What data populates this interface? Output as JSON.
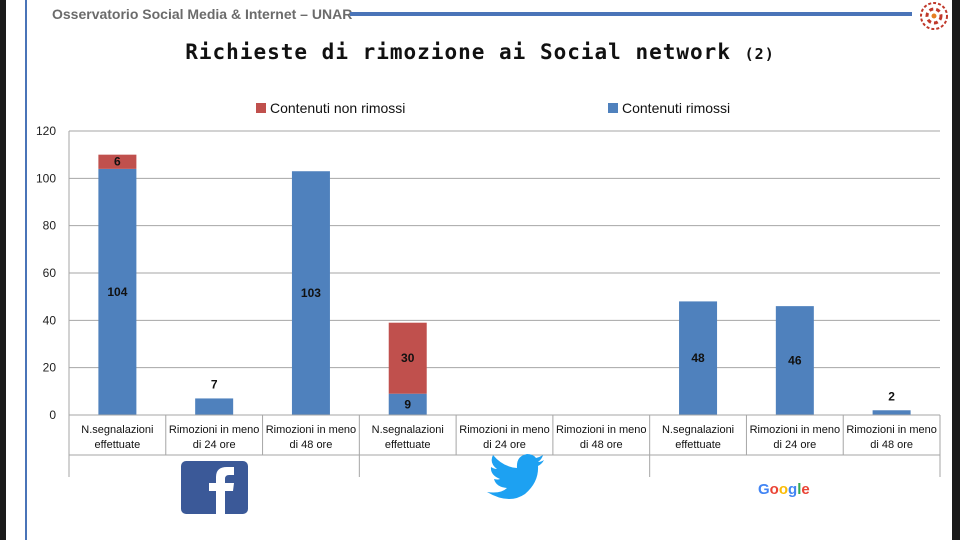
{
  "header": {
    "org": "Osservatorio Social Media & Internet – UNAR"
  },
  "title": {
    "main": "Richieste di rimozione ai Social network",
    "suffix": "(2)"
  },
  "colors": {
    "removed": "#4f81bd",
    "not_removed": "#c0504d",
    "accent": "#4a74b8"
  },
  "logos": [
    "facebook-logo",
    "twitter-logo",
    "google-logo"
  ],
  "google_wordmark": "Google",
  "chart_data": {
    "type": "bar",
    "stacked": true,
    "ylim": [
      0,
      120
    ],
    "yticks": [
      0,
      20,
      40,
      60,
      80,
      100,
      120
    ],
    "grid": true,
    "legend": "top",
    "groups": [
      "Facebook",
      "Twitter",
      "Google"
    ],
    "categories": [
      "N.segnalazioni effettuate",
      "Rimozioni in meno di 24 ore",
      "Rimozioni in meno di 48 ore",
      "N.segnalazioni effettuate",
      "Rimozioni in meno di 24 ore",
      "Rimozioni in meno di 48 ore",
      "N.segnalazioni effettuate",
      "Rimozioni in meno di 24 ore",
      "Rimozioni in meno di 48 ore"
    ],
    "series": [
      {
        "name": "Contenuti rimossi",
        "color": "#4f81bd",
        "values": [
          104,
          7,
          103,
          9,
          0,
          0,
          48,
          46,
          2
        ]
      },
      {
        "name": "Contenuti non rimossi",
        "color": "#c0504d",
        "values": [
          6,
          0,
          0,
          30,
          0,
          0,
          0,
          0,
          0
        ]
      }
    ],
    "legend_entries": [
      "Contenuti non rimossi",
      "Contenuti rimossi"
    ],
    "labels": [
      {
        "index": 0,
        "series": 0,
        "text": "104"
      },
      {
        "index": 0,
        "series": 1,
        "text": "6"
      },
      {
        "index": 1,
        "series": 0,
        "text": "7"
      },
      {
        "index": 2,
        "series": 0,
        "text": "103"
      },
      {
        "index": 3,
        "series": 0,
        "text": "9"
      },
      {
        "index": 3,
        "series": 1,
        "text": "30"
      },
      {
        "index": 6,
        "series": 0,
        "text": "48"
      },
      {
        "index": 7,
        "series": 0,
        "text": "46"
      },
      {
        "index": 8,
        "series": 0,
        "text": "2"
      }
    ]
  }
}
